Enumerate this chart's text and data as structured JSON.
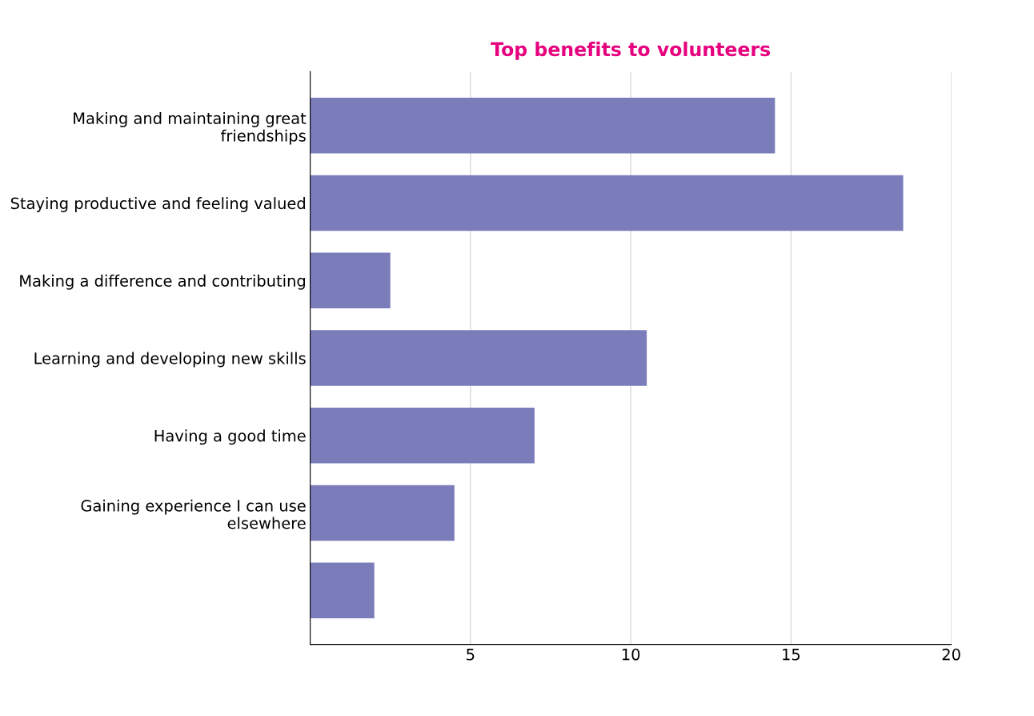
{
  "chart_data": {
    "type": "bar",
    "orientation": "horizontal",
    "title": "Top benefits to volunteers",
    "categories": [
      "Making and maintaining great friendships",
      "Staying productive and feeling valued",
      "Making a difference and contributing",
      "Learning and developing new skills",
      "Having a good time",
      "Gaining experience I can use elsewhere",
      null
    ],
    "values": [
      14.5,
      18.5,
      2.5,
      10.5,
      7,
      4.5,
      2
    ],
    "color": "#7b7dbb",
    "xlim": [
      0,
      20
    ],
    "xticks": [
      {
        "value": 0,
        "label": null
      },
      5,
      10,
      15,
      20
    ],
    "grid": "x"
  }
}
